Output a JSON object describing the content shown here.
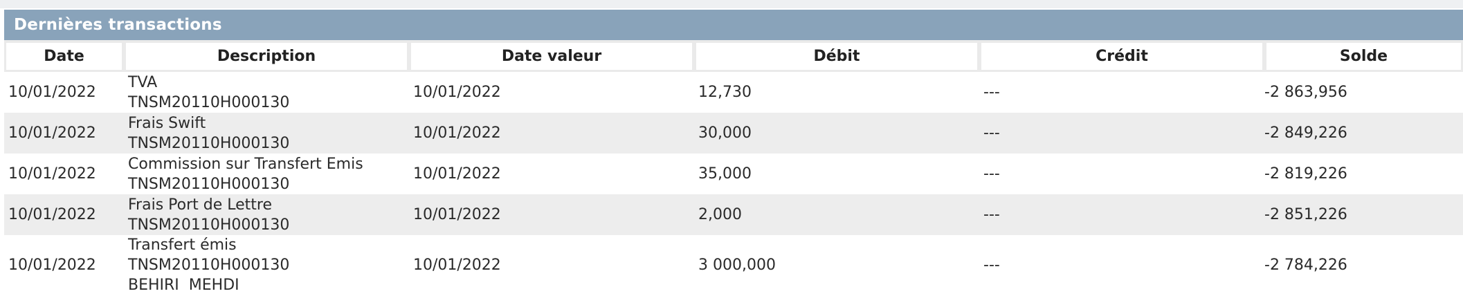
{
  "panel": {
    "title": "Dernières transactions"
  },
  "table": {
    "headers": [
      "Date",
      "Description",
      "Date valeur",
      "Débit",
      "Crédit",
      "Solde"
    ],
    "rows": [
      {
        "date": "10/01/2022",
        "desc": [
          "TVA",
          "TNSM20110H000130"
        ],
        "date_valeur": "10/01/2022",
        "debit": "12,730",
        "credit": "---",
        "solde": "-2 863,956"
      },
      {
        "date": "10/01/2022",
        "desc": [
          "Frais Swift",
          "TNSM20110H000130"
        ],
        "date_valeur": "10/01/2022",
        "debit": "30,000",
        "credit": "---",
        "solde": "-2 849,226"
      },
      {
        "date": "10/01/2022",
        "desc": [
          "Commission sur Transfert Emis",
          "TNSM20110H000130"
        ],
        "date_valeur": "10/01/2022",
        "debit": "35,000",
        "credit": "---",
        "solde": "-2 819,226"
      },
      {
        "date": "10/01/2022",
        "desc": [
          "Frais Port de Lettre",
          "TNSM20110H000130"
        ],
        "date_valeur": "10/01/2022",
        "debit": "2,000",
        "credit": "---",
        "solde": "-2 851,226"
      },
      {
        "date": "10/01/2022",
        "desc": [
          "Transfert émis",
          "TNSM20110H000130",
          "BEHIRI  MEHDI"
        ],
        "date_valeur": "10/01/2022",
        "debit": "3 000,000",
        "credit": "---",
        "solde": "-2 784,226"
      }
    ]
  }
}
